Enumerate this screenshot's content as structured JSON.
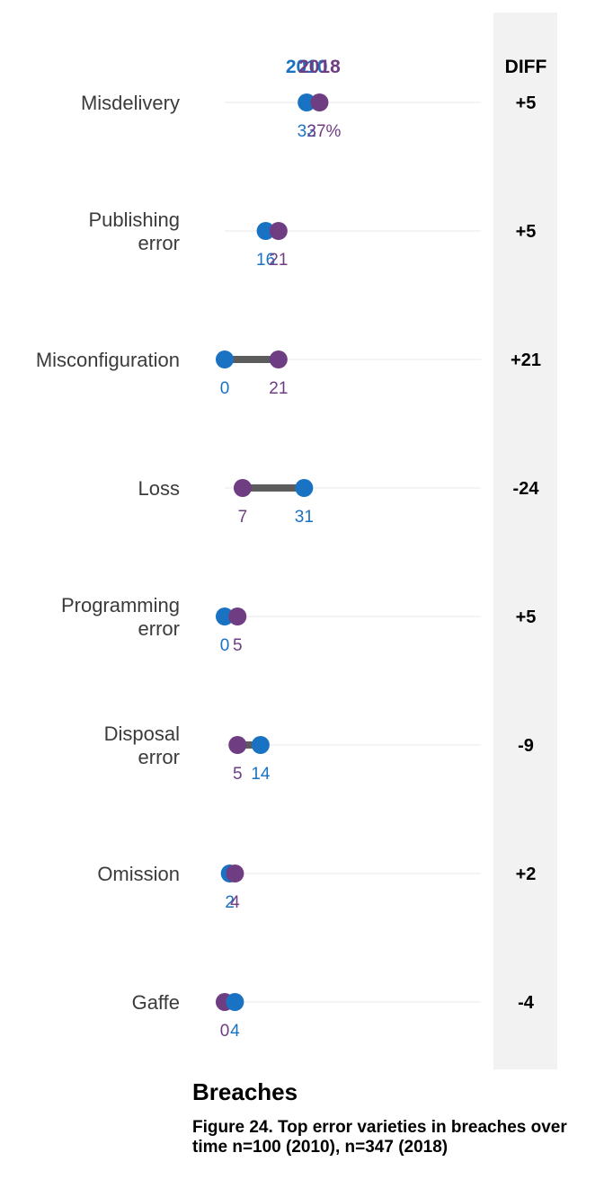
{
  "chart_data": {
    "type": "dumbbell",
    "diff_header": "DIFF",
    "series": [
      {
        "name": "2010",
        "color": "#1a73c2"
      },
      {
        "name": "2018",
        "color": "#6f3d82"
      }
    ],
    "xlim": [
      0,
      100
    ],
    "categories": [
      {
        "label": [
          "Misdelivery"
        ],
        "v2010": 32,
        "v2018": 37,
        "lab2010": "32",
        "lab2018": "37%",
        "diff": "+5"
      },
      {
        "label": [
          "Publishing",
          "error"
        ],
        "v2010": 16,
        "v2018": 21,
        "lab2010": "16",
        "lab2018": "21",
        "diff": "+5"
      },
      {
        "label": [
          "Misconfiguration"
        ],
        "v2010": 0,
        "v2018": 21,
        "lab2010": "0",
        "lab2018": "21",
        "diff": "+21"
      },
      {
        "label": [
          "Loss"
        ],
        "v2010": 31,
        "v2018": 7,
        "lab2010": "31",
        "lab2018": "7",
        "diff": "-24"
      },
      {
        "label": [
          "Programming",
          "error"
        ],
        "v2010": 0,
        "v2018": 5,
        "lab2010": "0",
        "lab2018": "5",
        "diff": "+5"
      },
      {
        "label": [
          "Disposal",
          "error"
        ],
        "v2010": 14,
        "v2018": 5,
        "lab2010": "14",
        "lab2018": "5",
        "diff": "-9"
      },
      {
        "label": [
          "Omission"
        ],
        "v2010": 2,
        "v2018": 4,
        "lab2010": "2",
        "lab2018": "4",
        "diff": "+2"
      },
      {
        "label": [
          "Gaffe"
        ],
        "v2010": 4,
        "v2018": 0,
        "lab2010": "4",
        "lab2018": "0",
        "diff": "-4"
      }
    ]
  },
  "caption": {
    "title": "Breaches",
    "subtitle": "Figure 24. Top error varieties in breaches over time n=100 (2010), n=347 (2018)"
  }
}
